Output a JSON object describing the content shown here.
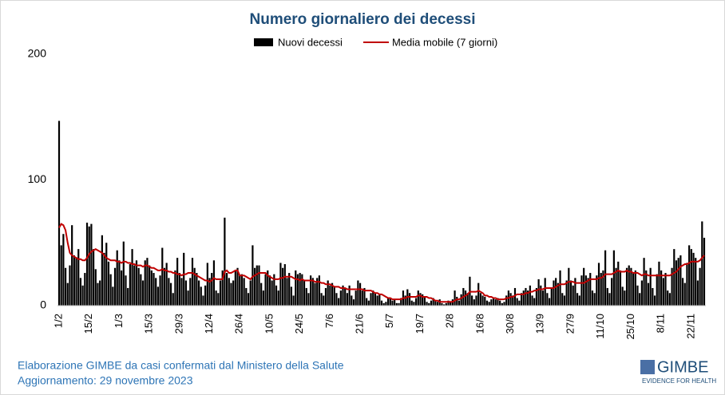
{
  "chart_data": {
    "type": "bar",
    "title": "Numero giornaliero dei decessi",
    "categories": [
      "1/2",
      null,
      null,
      null,
      null,
      null,
      null,
      null,
      null,
      null,
      null,
      null,
      null,
      null,
      "15/2",
      null,
      null,
      null,
      null,
      null,
      null,
      null,
      null,
      null,
      null,
      null,
      null,
      null,
      "1/3",
      null,
      null,
      null,
      null,
      null,
      null,
      null,
      null,
      null,
      null,
      null,
      null,
      null,
      "15/3",
      null,
      null,
      null,
      null,
      null,
      null,
      null,
      null,
      null,
      null,
      null,
      null,
      null,
      "29/3",
      null,
      null,
      null,
      null,
      null,
      null,
      null,
      null,
      null,
      null,
      null,
      null,
      null,
      "12/4",
      null,
      null,
      null,
      null,
      null,
      null,
      null,
      null,
      null,
      null,
      null,
      null,
      null,
      "26/4",
      null,
      null,
      null,
      null,
      null,
      null,
      null,
      null,
      null,
      null,
      null,
      null,
      null,
      "10/5",
      null,
      null,
      null,
      null,
      null,
      null,
      null,
      null,
      null,
      null,
      null,
      null,
      null,
      "24/5",
      null,
      null,
      null,
      null,
      null,
      null,
      null,
      null,
      null,
      null,
      null,
      null,
      null,
      "7/6",
      null,
      null,
      null,
      null,
      null,
      null,
      null,
      null,
      null,
      null,
      null,
      null,
      null,
      "21/6",
      null,
      null,
      null,
      null,
      null,
      null,
      null,
      null,
      null,
      null,
      null,
      null,
      null,
      "5/7",
      null,
      null,
      null,
      null,
      null,
      null,
      null,
      null,
      null,
      null,
      null,
      null,
      null,
      "19/7",
      null,
      null,
      null,
      null,
      null,
      null,
      null,
      null,
      null,
      null,
      null,
      null,
      null,
      "2/8",
      null,
      null,
      null,
      null,
      null,
      null,
      null,
      null,
      null,
      null,
      null,
      null,
      null,
      "16/8",
      null,
      null,
      null,
      null,
      null,
      null,
      null,
      null,
      null,
      null,
      null,
      null,
      null,
      "30/8",
      null,
      null,
      null,
      null,
      null,
      null,
      null,
      null,
      null,
      null,
      null,
      null,
      null,
      "13/9",
      null,
      null,
      null,
      null,
      null,
      null,
      null,
      null,
      null,
      null,
      null,
      null,
      null,
      "27/9",
      null,
      null,
      null,
      null,
      null,
      null,
      null,
      null,
      null,
      null,
      null,
      null,
      null,
      "11/10",
      null,
      null,
      null,
      null,
      null,
      null,
      null,
      null,
      null,
      null,
      null,
      null,
      null,
      "25/10",
      null,
      null,
      null,
      null,
      null,
      null,
      null,
      null,
      null,
      null,
      null,
      null,
      null,
      "8/11",
      null,
      null,
      null,
      null,
      null,
      null,
      null,
      null,
      null,
      null,
      null,
      null,
      null,
      "22/11",
      null,
      null,
      null,
      null,
      null,
      null
    ],
    "series": [
      {
        "name": "Nuovi decessi",
        "type": "bar",
        "color": "#000000",
        "values": [
          147,
          48,
          57,
          30,
          18,
          32,
          64,
          40,
          38,
          45,
          22,
          16,
          26,
          66,
          63,
          65,
          45,
          29,
          18,
          20,
          56,
          42,
          50,
          35,
          25,
          15,
          30,
          44,
          36,
          28,
          51,
          24,
          14,
          33,
          45,
          32,
          36,
          30,
          25,
          20,
          36,
          38,
          32,
          28,
          26,
          22,
          15,
          24,
          46,
          30,
          34,
          22,
          18,
          10,
          28,
          38,
          26,
          22,
          42,
          20,
          12,
          22,
          38,
          30,
          26,
          20,
          15,
          8,
          16,
          34,
          22,
          26,
          36,
          12,
          10,
          20,
          28,
          70,
          26,
          22,
          18,
          20,
          28,
          30,
          24,
          25,
          22,
          14,
          10,
          20,
          48,
          30,
          32,
          32,
          18,
          12,
          25,
          28,
          24,
          20,
          25,
          16,
          12,
          34,
          30,
          33,
          22,
          26,
          15,
          8,
          28,
          25,
          26,
          25,
          20,
          14,
          10,
          24,
          22,
          18,
          22,
          24,
          10,
          8,
          14,
          20,
          16,
          18,
          15,
          10,
          6,
          12,
          16,
          14,
          10,
          16,
          8,
          5,
          12,
          20,
          18,
          12,
          14,
          6,
          4,
          10,
          12,
          10,
          8,
          9,
          4,
          2,
          3,
          6,
          6,
          4,
          5,
          2,
          2,
          6,
          12,
          8,
          13,
          10,
          4,
          3,
          6,
          12,
          10,
          9,
          7,
          3,
          2,
          4,
          6,
          4,
          3,
          5,
          2,
          1,
          2,
          4,
          3,
          5,
          12,
          7,
          4,
          9,
          14,
          12,
          10,
          23,
          8,
          5,
          8,
          18,
          10,
          8,
          7,
          4,
          3,
          5,
          6,
          5,
          6,
          4,
          2,
          3,
          8,
          12,
          10,
          8,
          14,
          6,
          4,
          10,
          12,
          14,
          12,
          16,
          8,
          6,
          14,
          21,
          16,
          12,
          22,
          10,
          6,
          14,
          20,
          22,
          18,
          28,
          10,
          8,
          20,
          30,
          20,
          16,
          22,
          10,
          8,
          24,
          30,
          24,
          22,
          26,
          12,
          10,
          24,
          34,
          26,
          28,
          44,
          14,
          10,
          22,
          44,
          30,
          35,
          28,
          15,
          12,
          30,
          32,
          30,
          26,
          28,
          16,
          10,
          20,
          38,
          28,
          18,
          30,
          14,
          8,
          25,
          35,
          28,
          22,
          26,
          12,
          10,
          30,
          45,
          36,
          38,
          40,
          22,
          18,
          34,
          48,
          45,
          42,
          38,
          20,
          30,
          67,
          54
        ]
      },
      {
        "name": "Media mobile (7 giorni)",
        "type": "line",
        "color": "#c00000",
        "values": [
          62,
          65,
          64,
          60,
          50,
          42,
          40,
          39,
          38,
          37,
          37,
          36,
          36,
          38,
          41,
          43,
          44,
          45,
          44,
          43,
          42,
          40,
          38,
          37,
          36,
          36,
          36,
          35,
          35,
          34,
          35,
          35,
          34,
          34,
          33,
          33,
          32,
          32,
          32,
          31,
          32,
          32,
          31,
          30,
          30,
          29,
          28,
          28,
          29,
          28,
          28,
          27,
          27,
          26,
          26,
          25,
          25,
          24,
          25,
          25,
          26,
          26,
          26,
          25,
          24,
          23,
          22,
          21,
          20,
          20,
          19,
          20,
          22,
          21,
          21,
          21,
          21,
          27,
          28,
          26,
          26,
          27,
          28,
          28,
          24,
          24,
          24,
          23,
          22,
          21,
          23,
          24,
          25,
          26,
          26,
          26,
          26,
          24,
          23,
          22,
          21,
          21,
          21,
          22,
          22,
          23,
          23,
          23,
          23,
          22,
          21,
          21,
          20,
          21,
          20,
          20,
          20,
          20,
          20,
          19,
          19,
          19,
          18,
          18,
          17,
          17,
          17,
          16,
          15,
          15,
          15,
          14,
          14,
          14,
          13,
          13,
          13,
          13,
          13,
          13,
          13,
          13,
          12,
          12,
          12,
          12,
          11,
          10,
          10,
          9,
          9,
          8,
          7,
          6,
          6,
          5,
          5,
          5,
          5,
          5,
          6,
          6,
          7,
          7,
          7,
          7,
          7,
          8,
          8,
          7,
          7,
          7,
          6,
          6,
          5,
          4,
          4,
          3,
          3,
          3,
          3,
          3,
          3,
          3,
          4,
          5,
          5,
          6,
          7,
          8,
          9,
          11,
          11,
          11,
          11,
          12,
          11,
          10,
          8,
          8,
          7,
          7,
          6,
          6,
          5,
          5,
          5,
          5,
          6,
          6,
          7,
          7,
          8,
          9,
          9,
          9,
          9,
          10,
          10,
          11,
          11,
          12,
          12,
          13,
          13,
          13,
          14,
          14,
          14,
          14,
          14,
          15,
          16,
          17,
          17,
          17,
          18,
          19,
          19,
          19,
          18,
          18,
          18,
          18,
          18,
          19,
          20,
          21,
          21,
          21,
          21,
          22,
          22,
          23,
          25,
          25,
          25,
          25,
          26,
          27,
          28,
          27,
          27,
          27,
          28,
          27,
          27,
          26,
          26,
          26,
          25,
          24,
          25,
          25,
          24,
          24,
          24,
          24,
          24,
          24,
          24,
          24,
          24,
          24,
          24,
          25,
          26,
          27,
          29,
          31,
          32,
          33,
          33,
          34,
          35,
          35,
          35,
          35,
          36,
          38,
          40
        ]
      }
    ],
    "ylim": [
      0,
      200
    ],
    "yticks": [
      0,
      100,
      200
    ],
    "grid": false,
    "legend": "top"
  },
  "footer": {
    "source": "Elaborazione GIMBE da casi confermati dal Ministero della Salute",
    "updated": "Aggiornamento: 29 novembre 2023",
    "logo": "GIMBE",
    "logo_tagline": "EVIDENCE FOR HEALTH"
  }
}
